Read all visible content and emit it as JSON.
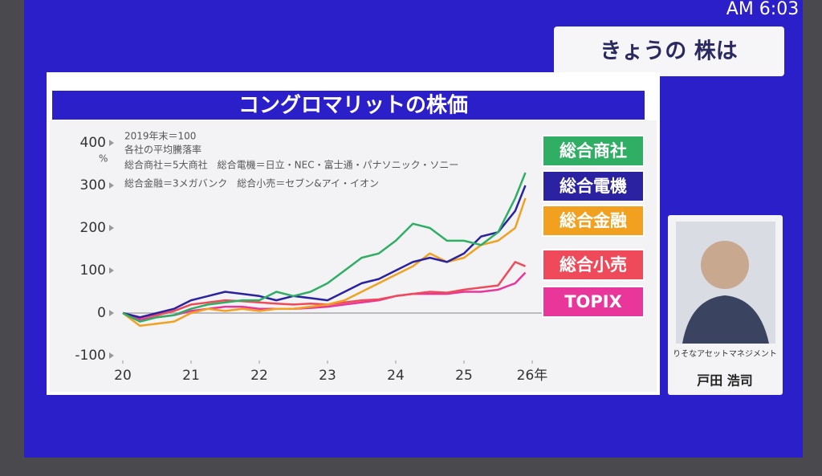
{
  "header": {
    "clock": "AM 6:03",
    "segment": "きょうの 株は"
  },
  "guest": {
    "company": "りそなアセットマネジメント",
    "name": "戸田 浩司"
  },
  "chart_data": {
    "type": "line",
    "title": "コングロマリットの株価",
    "annotations": [
      "2019年末＝100",
      "各社の平均騰落率",
      "総合商社＝5大商社　総合電機＝日立・NEC・富士通・パナソニック・ソニー",
      "総合金融＝3メガバンク　総合小売＝セブン&アイ・イオン"
    ],
    "y_unit": "%",
    "x": [
      20,
      20.25,
      20.5,
      20.75,
      21,
      21.25,
      21.5,
      21.75,
      22,
      22.25,
      22.5,
      22.75,
      23,
      23.25,
      23.5,
      23.75,
      24,
      24.25,
      24.5,
      24.75,
      25,
      25.25,
      25.5,
      25.75,
      25.9
    ],
    "xlim": [
      20,
      26
    ],
    "xticks": [
      20,
      21,
      22,
      23,
      24,
      25,
      {
        "value": 26,
        "label": "26年"
      }
    ],
    "ylim": [
      -100,
      400
    ],
    "yticks": [
      -100,
      0,
      100,
      200,
      300,
      400
    ],
    "grid": false,
    "series": [
      {
        "name": "総合商社",
        "color": "#2fae64",
        "values": [
          0,
          -20,
          -10,
          -5,
          10,
          20,
          25,
          30,
          30,
          50,
          40,
          50,
          70,
          100,
          130,
          140,
          170,
          210,
          200,
          170,
          170,
          160,
          190,
          270,
          330
        ]
      },
      {
        "name": "総合電機",
        "color": "#2a22a0",
        "values": [
          0,
          -10,
          0,
          10,
          30,
          40,
          50,
          45,
          40,
          30,
          40,
          35,
          30,
          50,
          70,
          80,
          100,
          120,
          130,
          120,
          140,
          180,
          190,
          240,
          300
        ]
      },
      {
        "name": "総合金融",
        "color": "#f2a020",
        "values": [
          0,
          -30,
          -25,
          -20,
          0,
          10,
          5,
          10,
          5,
          10,
          10,
          15,
          20,
          30,
          50,
          70,
          90,
          110,
          140,
          120,
          130,
          160,
          170,
          200,
          270
        ]
      },
      {
        "name": "総合小売",
        "color": "#ef4a5a",
        "values": [
          0,
          -10,
          -5,
          5,
          20,
          25,
          30,
          28,
          25,
          22,
          20,
          22,
          20,
          25,
          30,
          32,
          40,
          45,
          50,
          48,
          55,
          60,
          65,
          120,
          110
        ]
      },
      {
        "name": "TOPIX",
        "color": "#e8369a",
        "values": [
          0,
          -15,
          -10,
          -5,
          5,
          10,
          15,
          15,
          10,
          10,
          10,
          12,
          15,
          20,
          25,
          30,
          40,
          45,
          45,
          45,
          50,
          50,
          55,
          70,
          95
        ]
      }
    ]
  }
}
